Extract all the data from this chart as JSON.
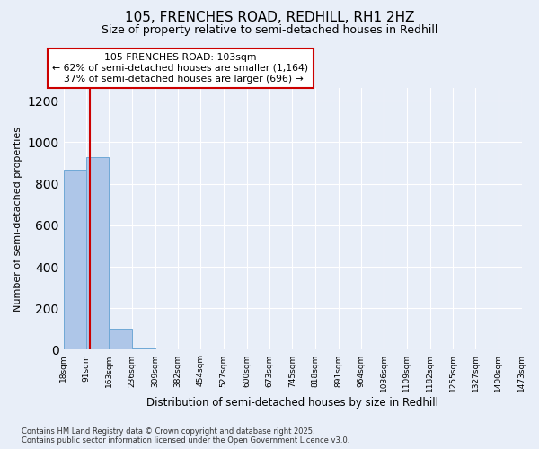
{
  "title1": "105, FRENCHES ROAD, REDHILL, RH1 2HZ",
  "title2": "Size of property relative to semi-detached houses in Redhill",
  "xlabel": "Distribution of semi-detached houses by size in Redhill",
  "ylabel": "Number of semi-detached properties",
  "bin_edges": [
    18,
    91,
    163,
    236,
    309,
    382,
    454,
    527,
    600,
    673,
    745,
    818,
    891,
    964,
    1036,
    1109,
    1182,
    1255,
    1327,
    1400,
    1473
  ],
  "bar_heights": [
    868,
    927,
    100,
    5,
    2,
    1,
    0,
    0,
    0,
    0,
    0,
    0,
    0,
    0,
    0,
    0,
    0,
    0,
    0,
    0
  ],
  "bar_color": "#aec6e8",
  "bar_edge_color": "#6fa8d6",
  "property_size": 103,
  "property_label": "105 FRENCHES ROAD: 103sqm",
  "pct_smaller": 62,
  "pct_smaller_count": 1164,
  "pct_larger": 37,
  "pct_larger_count": 696,
  "annotation_box_color": "#ffffff",
  "annotation_box_edge": "#cc0000",
  "red_line_color": "#cc0000",
  "background_color": "#e8eef8",
  "plot_bg_color": "#e8eef8",
  "ylim": [
    0,
    1260
  ],
  "yticks": [
    0,
    200,
    400,
    600,
    800,
    1000,
    1200
  ],
  "footer1": "Contains HM Land Registry data © Crown copyright and database right 2025.",
  "footer2": "Contains public sector information licensed under the Open Government Licence v3.0."
}
